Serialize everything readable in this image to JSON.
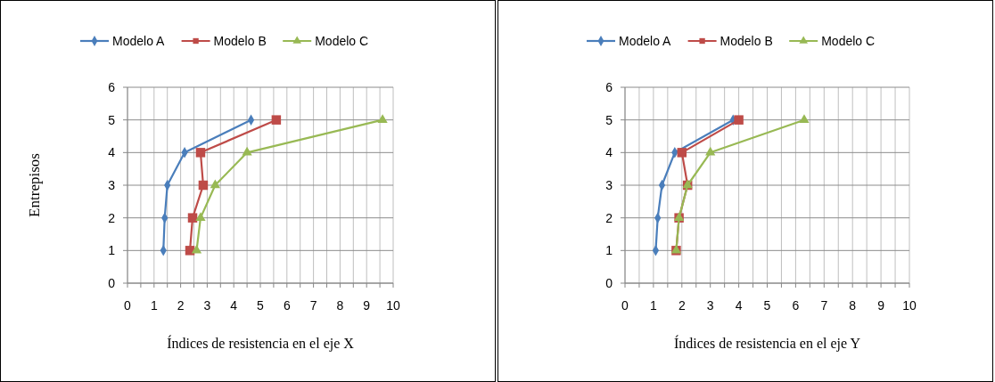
{
  "chart_data": [
    {
      "type": "line",
      "xlabel": "Índices de resistencia en el eje X",
      "ylabel": "Entrepisos",
      "xlim": [
        0,
        10
      ],
      "ylim": [
        0,
        6
      ],
      "xticks": [
        0,
        {
          "value": 0.5,
          "label": null
        },
        1,
        {
          "value": 1.5,
          "label": null
        },
        2,
        {
          "value": 2.5,
          "label": null
        },
        3,
        {
          "value": 3.5,
          "label": null
        },
        4,
        {
          "value": 4.5,
          "label": null
        },
        5,
        {
          "value": 5.5,
          "label": null
        },
        6,
        {
          "value": 6.5,
          "label": null
        },
        7,
        {
          "value": 7.5,
          "label": null
        },
        8,
        {
          "value": 8.5,
          "label": null
        },
        9,
        {
          "value": 9.5,
          "label": null
        },
        10
      ],
      "yticks": [
        0,
        1,
        2,
        3,
        4,
        5,
        6
      ],
      "grid": true,
      "legend": "top",
      "series": [
        {
          "name": "Modelo A",
          "color": "#4a7ebb",
          "marker": "diamond",
          "x": [
            1.35,
            1.4,
            1.5,
            2.15,
            4.65
          ],
          "values": [
            1,
            2,
            3,
            4,
            5
          ]
        },
        {
          "name": "Modelo B",
          "color": "#be4b48",
          "marker": "square",
          "x": [
            2.35,
            2.45,
            2.85,
            2.75,
            5.6
          ],
          "values": [
            1,
            2,
            3,
            4,
            5
          ]
        },
        {
          "name": "Modelo C",
          "color": "#98b954",
          "marker": "triangle",
          "x": [
            2.6,
            2.75,
            3.3,
            4.5,
            9.6
          ],
          "values": [
            1,
            2,
            3,
            4,
            5
          ]
        }
      ]
    },
    {
      "type": "line",
      "xlabel": "Índices de resistencia en el eje Y",
      "xlim": [
        0,
        10
      ],
      "ylim": [
        0,
        6
      ],
      "xticks": [
        0,
        {
          "value": 0.5,
          "label": null
        },
        1,
        {
          "value": 1.5,
          "label": null
        },
        2,
        {
          "value": 2.5,
          "label": null
        },
        3,
        {
          "value": 3.5,
          "label": null
        },
        4,
        {
          "value": 4.5,
          "label": null
        },
        5,
        {
          "value": 5.5,
          "label": null
        },
        6,
        {
          "value": 6.5,
          "label": null
        },
        7,
        {
          "value": 7.5,
          "label": null
        },
        8,
        {
          "value": 8.5,
          "label": null
        },
        9,
        {
          "value": 9.5,
          "label": null
        },
        10
      ],
      "yticks": [
        0,
        1,
        2,
        3,
        4,
        5,
        6
      ],
      "grid": true,
      "legend": "top",
      "series": [
        {
          "name": "Modelo A",
          "color": "#4a7ebb",
          "marker": "diamond",
          "x": [
            1.08,
            1.15,
            1.3,
            1.75,
            3.8
          ],
          "values": [
            1,
            2,
            3,
            4,
            5
          ]
        },
        {
          "name": "Modelo B",
          "color": "#be4b48",
          "marker": "square",
          "x": [
            1.8,
            1.9,
            2.2,
            2.0,
            4.0
          ],
          "values": [
            1,
            2,
            3,
            4,
            5
          ]
        },
        {
          "name": "Modelo C",
          "color": "#98b954",
          "marker": "triangle",
          "x": [
            1.8,
            1.9,
            2.2,
            3.0,
            6.3
          ],
          "values": [
            1,
            2,
            3,
            4,
            5
          ]
        }
      ]
    }
  ]
}
